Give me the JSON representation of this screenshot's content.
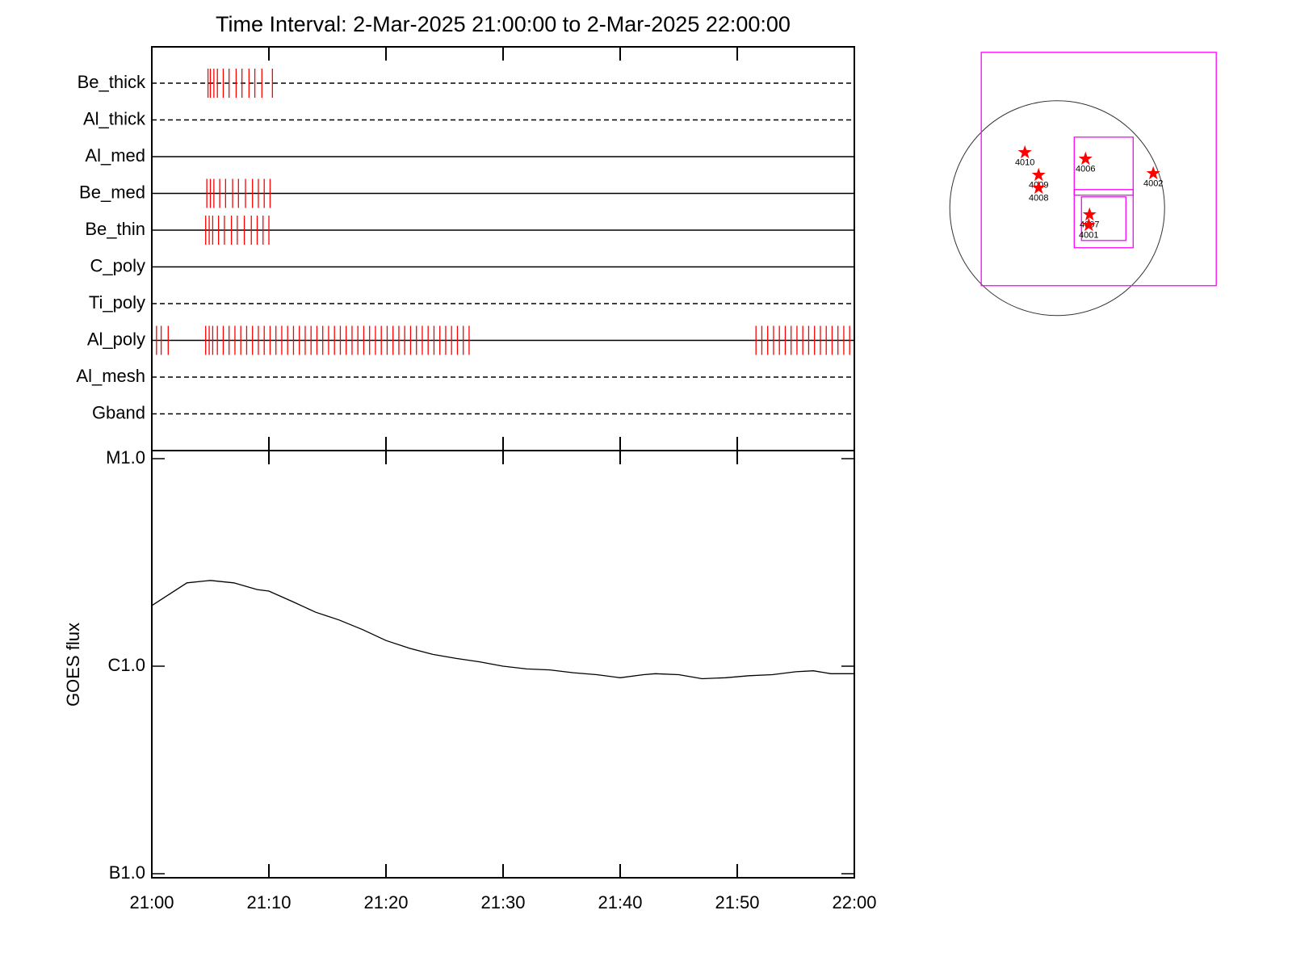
{
  "chart_data": [
    {
      "type": "timeline",
      "title": "Time Interval:  2-Mar-2025 21:00:00 to  2-Mar-2025 22:00:00",
      "xlim": [
        0,
        60
      ],
      "color": "#ff0000",
      "rows": [
        {
          "name": "Be_thick",
          "line": "dashed",
          "times": [
            4.8,
            5.0,
            5.3,
            5.6,
            6.1,
            6.6,
            7.2,
            7.7,
            8.3,
            8.8,
            9.4,
            10.3
          ]
        },
        {
          "name": "Al_thick",
          "line": "dashed",
          "times": []
        },
        {
          "name": "Al_med",
          "line": "solid",
          "times": []
        },
        {
          "name": "Be_med",
          "line": "solid",
          "times": [
            4.7,
            5.0,
            5.3,
            5.8,
            6.3,
            6.9,
            7.4,
            8.0,
            8.6,
            9.1,
            9.6,
            10.1
          ]
        },
        {
          "name": "Be_thin",
          "line": "solid",
          "times": [
            4.6,
            4.9,
            5.2,
            5.7,
            6.2,
            6.8,
            7.3,
            7.9,
            8.5,
            9.0,
            9.5,
            10.0
          ]
        },
        {
          "name": "C_poly",
          "line": "solid",
          "times": []
        },
        {
          "name": "Ti_poly",
          "line": "dashed",
          "times": []
        },
        {
          "name": "Al_poly",
          "line": "solid",
          "times": [
            0.4,
            0.8,
            1.4,
            4.6,
            4.9,
            5.2,
            5.6,
            6.1,
            6.6,
            7.1,
            7.6,
            8.1,
            8.6,
            9.1,
            9.6,
            10.1,
            10.6,
            11.1,
            11.6,
            12.1,
            12.6,
            13.1,
            13.6,
            14.1,
            14.6,
            15.1,
            15.6,
            16.1,
            16.6,
            17.1,
            17.6,
            18.1,
            18.6,
            19.1,
            19.6,
            20.1,
            20.6,
            21.1,
            21.6,
            22.1,
            22.6,
            23.1,
            23.6,
            24.1,
            24.6,
            25.1,
            25.6,
            26.1,
            26.6,
            27.1,
            51.6,
            52.1,
            52.6,
            53.1,
            53.6,
            54.1,
            54.6,
            55.1,
            55.6,
            56.1,
            56.6,
            57.1,
            57.6,
            58.1,
            58.6,
            59.1,
            59.6
          ]
        },
        {
          "name": "Al_mesh",
          "line": "dashed",
          "times": []
        },
        {
          "name": "Gband",
          "line": "dashed",
          "times": []
        }
      ]
    },
    {
      "type": "line",
      "ylabel": "GOES flux",
      "log_y": true,
      "color": "#000000",
      "x": [
        0,
        3,
        5,
        7,
        9,
        10,
        12,
        14,
        16,
        18,
        20,
        22,
        24,
        26,
        28,
        30,
        32,
        34,
        36,
        38,
        40,
        42,
        43,
        45,
        47,
        49,
        51,
        53,
        55,
        56.5,
        58,
        60
      ],
      "values": [
        1.96e-06,
        2.52e-06,
        2.59e-06,
        2.52e-06,
        2.34e-06,
        2.3e-06,
        2.05e-06,
        1.82e-06,
        1.67e-06,
        1.5e-06,
        1.33e-06,
        1.22e-06,
        1.14e-06,
        1.09e-06,
        1.05e-06,
        1e-06,
        9.7e-07,
        9.6e-07,
        9.3e-07,
        9.1e-07,
        8.8e-07,
        9.1e-07,
        9.2e-07,
        9.1e-07,
        8.7e-07,
        8.8e-07,
        9e-07,
        9.1e-07,
        9.4e-07,
        9.5e-07,
        9.2e-07,
        9.2e-07
      ],
      "xlim": [
        0,
        60
      ],
      "xticks": [
        {
          "value": 0,
          "label": "21:00"
        },
        {
          "value": 10,
          "label": "21:10"
        },
        {
          "value": 20,
          "label": "21:20"
        },
        {
          "value": 30,
          "label": "21:30"
        },
        {
          "value": 40,
          "label": "21:40"
        },
        {
          "value": 50,
          "label": "21:50"
        },
        {
          "value": 60,
          "label": "22:00"
        }
      ],
      "ylim": [
        1e-07,
        1e-05
      ],
      "yticks": [
        {
          "value": 1e-07,
          "label": "B1.0"
        },
        {
          "value": 1e-06,
          "label": "C1.0"
        },
        {
          "value": 1e-05,
          "label": "M1.0"
        }
      ]
    },
    {
      "type": "map",
      "xlim": [
        -1200,
        1500
      ],
      "ylim": [
        -1200,
        1500
      ],
      "disk_radius": 960,
      "box_color": "#ff00ff",
      "star_color": "#ff0000",
      "boxes": [
        {
          "x": [
            -679,
            1422
          ],
          "y": [
            -693,
            1393
          ]
        },
        {
          "x": [
            152,
            679
          ],
          "y": [
            116,
            635
          ]
        },
        {
          "x": [
            152,
            679
          ],
          "y": [
            -354,
            166
          ]
        },
        {
          "x": [
            217,
            614
          ],
          "y": [
            -289,
            101
          ]
        }
      ],
      "regions": [
        {
          "label": "4010",
          "x": -289,
          "y": 498
        },
        {
          "label": "4006",
          "x": 253,
          "y": 440
        },
        {
          "label": "4002",
          "x": 859,
          "y": 310
        },
        {
          "label": "4009",
          "x": -166,
          "y": 296
        },
        {
          "label": "4008",
          "x": -166,
          "y": 181
        },
        {
          "label": "4007",
          "x": 289,
          "y": -58
        },
        {
          "label": "4001",
          "x": 282,
          "y": -152
        }
      ]
    }
  ]
}
